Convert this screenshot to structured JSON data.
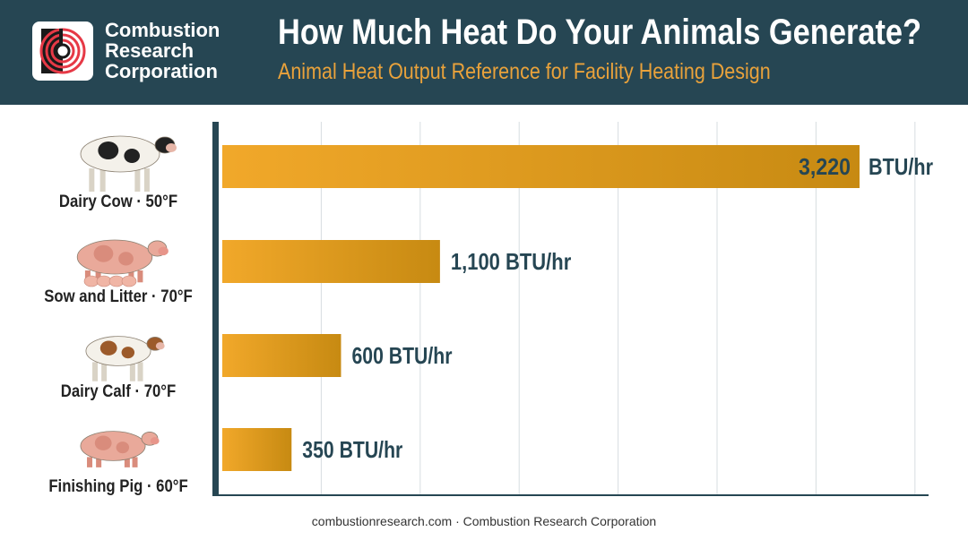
{
  "header": {
    "logo_lines": [
      "Combustion",
      "Research",
      "Corporation"
    ],
    "title": "How Much Heat Do Your Animals Generate?",
    "subtitle": "Animal Heat Output Reference for Facility Heating Design"
  },
  "colors": {
    "header_bg": "#264653",
    "accent": "#e9a23b",
    "bar_light": "#f1a82a",
    "bar_dark": "#c78a12",
    "value_text": "#264653",
    "logo_red": "#e63946"
  },
  "chart_data": {
    "type": "bar",
    "orientation": "horizontal",
    "categories": [
      "Dairy Cow · 50°F",
      "Sow and Litter · 70°F",
      "Dairy Calf · 70°F",
      "Finishing Pig · 60°F"
    ],
    "icons": [
      "cow-icon",
      "sow-and-piglets-icon",
      "calf-icon",
      "pig-icon"
    ],
    "values": [
      3220,
      1100,
      600,
      350
    ],
    "value_labels": [
      "3,220",
      "1,100 BTU/hr",
      "600 BTU/hr",
      "350 BTU/hr"
    ],
    "first_unit_outside": "BTU/hr",
    "xlim": [
      0,
      3500
    ],
    "grid": true,
    "gridline_step": 500
  },
  "footer": {
    "site": "combustionresearch.com",
    "separator": "·",
    "company": "Combustion Research Corporation"
  }
}
